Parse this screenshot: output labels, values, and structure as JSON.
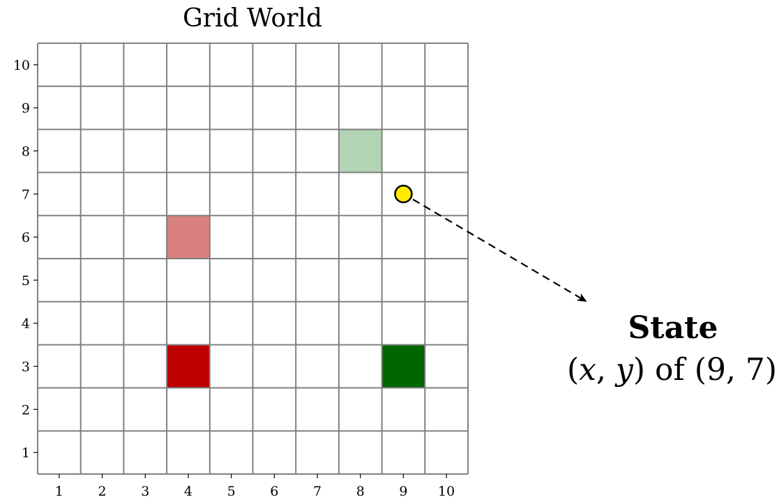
{
  "figure": {
    "title": "Grid World",
    "x_ticks": [
      "1",
      "2",
      "3",
      "4",
      "5",
      "6",
      "7",
      "8",
      "9",
      "10"
    ],
    "y_ticks": [
      "1",
      "2",
      "3",
      "4",
      "5",
      "6",
      "7",
      "8",
      "9",
      "10"
    ]
  },
  "grid": {
    "cols": 10,
    "rows": 10,
    "line_color": "#808080",
    "cells": [
      {
        "id": "goal-light",
        "x": 8,
        "y": 8,
        "color": "#b2d3b4"
      },
      {
        "id": "hazard-light",
        "x": 4,
        "y": 6,
        "color": "#d98181"
      },
      {
        "id": "hazard-dark",
        "x": 4,
        "y": 3,
        "color": "#bf0000"
      },
      {
        "id": "goal-dark",
        "x": 9,
        "y": 3,
        "color": "#006600"
      }
    ],
    "agent": {
      "x": 9,
      "y": 7,
      "color": "#ffea00"
    }
  },
  "annotation": {
    "title": "State",
    "var_x": "x",
    "var_y": "y",
    "of_text": "of",
    "value_text": "(9, 7)"
  }
}
